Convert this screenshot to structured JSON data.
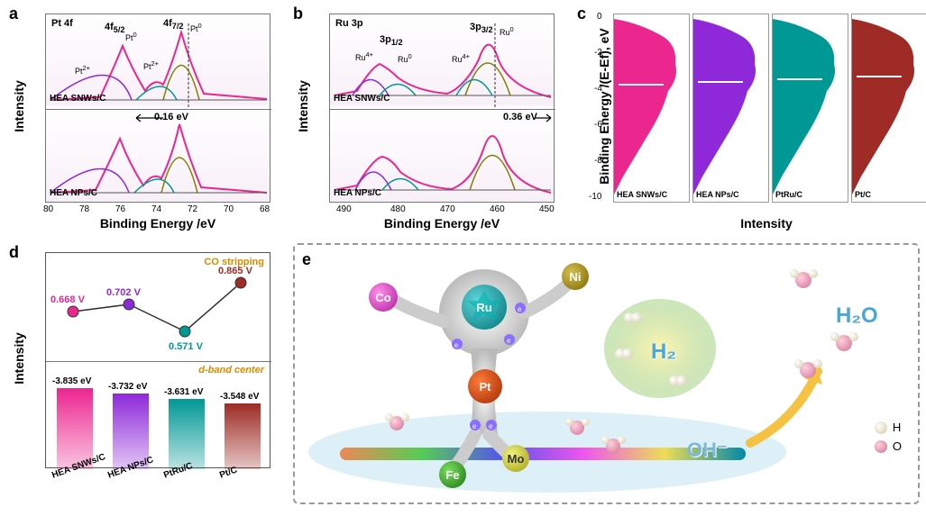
{
  "global": {
    "colors": {
      "pink": "#ec268f",
      "purple": "#8e28d9",
      "teal": "#009894",
      "darkred": "#9e2b25",
      "orange": "#d88c00",
      "green_olive": "#808000",
      "blue_peak": "#2050ff",
      "gray_baseline": "#555"
    }
  },
  "panel_a": {
    "label": "a",
    "title": "Pt 4f",
    "ylabel": "Intensity",
    "xlabel": "Binding Energy /eV",
    "xticks": [
      "80",
      "78",
      "76",
      "74",
      "72",
      "70",
      "68"
    ],
    "top_sample": "HEA SNWs/C",
    "bottom_sample": "HEA NPs/C",
    "shift": "0.16 eV",
    "peaks": [
      "4f5/2",
      "4f7/2",
      "Pt2+",
      "Pt0",
      "Pt2+",
      "Pt0"
    ],
    "peak_colors": [
      "#ec268f",
      "#8e28d9",
      "#009894",
      "#808000",
      "#2050ff"
    ]
  },
  "panel_b": {
    "label": "b",
    "title": "Ru 3p",
    "ylabel": "Intensity",
    "xlabel": "Binding Energy /eV",
    "xticks": [
      "490",
      "480",
      "470",
      "460",
      "450"
    ],
    "top_sample": "HEA SNWs/C",
    "bottom_sample": "HEA NPs/C",
    "shift": "0.36 eV",
    "peaks": [
      "3p1/2",
      "3p3/2",
      "Ru4+",
      "Ru0",
      "Ru4+",
      "Ru0"
    ]
  },
  "panel_c": {
    "label": "c",
    "ylabel": "Binding Energy /(E-Ef), eV",
    "xlabel": "Intensity",
    "yticks": [
      "0",
      "-2",
      "-4",
      "-6",
      "-8",
      "-10"
    ],
    "items": [
      {
        "label": "HEA SNWs/C",
        "color": "#ec268f"
      },
      {
        "label": "HEA NPs/C",
        "color": "#8e28d9"
      },
      {
        "label": "PtRu/C",
        "color": "#009894"
      },
      {
        "label": "Pt/C",
        "color": "#9e2b25"
      }
    ]
  },
  "panel_d": {
    "label": "d",
    "ylabel": "Intensity",
    "top_title": "CO stripping",
    "bottom_title": "d-band center",
    "xticks": [
      "HEA SNWs/C",
      "HEA NPs/C",
      "PtRu/C",
      "Pt/C"
    ],
    "co_points": [
      {
        "v": "0.668 V",
        "color": "#ec268f",
        "y": 50
      },
      {
        "v": "0.702 V",
        "color": "#8e28d9",
        "y": 42
      },
      {
        "v": "0.571 V",
        "color": "#009894",
        "y": 72
      },
      {
        "v": "0.865 V",
        "color": "#9e2b25",
        "y": 18
      }
    ],
    "bars": [
      {
        "v": "-3.835 eV",
        "color": "#ec268f",
        "h": 90
      },
      {
        "v": "-3.732 eV",
        "color": "#8e28d9",
        "h": 84
      },
      {
        "v": "-3.631 eV",
        "color": "#009894",
        "h": 78
      },
      {
        "v": "-3.548 eV",
        "color": "#9e2b25",
        "h": 73
      }
    ]
  },
  "panel_e": {
    "label": "e",
    "atoms": {
      "Ru": {
        "color": "#00a3a8",
        "label": "Ru"
      },
      "Co": {
        "color": "#d63dc3",
        "label": "Co"
      },
      "Ni": {
        "color": "#a88a00",
        "label": "Ni"
      },
      "Pt": {
        "color": "#c83c00",
        "label": "Pt"
      },
      "Fe": {
        "color": "#3aa82e",
        "label": "Fe"
      },
      "Mo": {
        "color": "#d0d030",
        "label": "Mo"
      }
    },
    "gas_labels": {
      "H2": "H₂",
      "H2O": "H₂O",
      "OH": "OH⁻"
    },
    "legend": {
      "H": "H",
      "O": "O",
      "H_color": "#e8dfc7",
      "O_color": "#e5a0bb"
    }
  }
}
